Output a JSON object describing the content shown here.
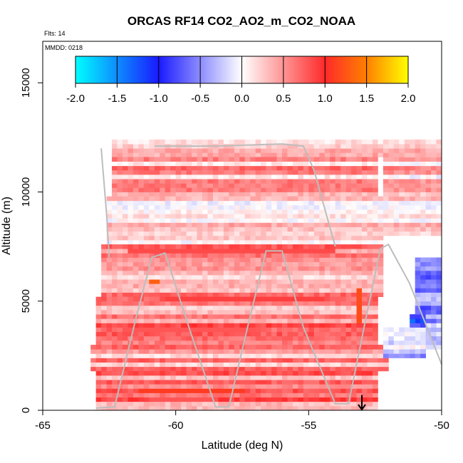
{
  "chart_data": {
    "type": "heatmap",
    "title": "ORCAS RF14 CO2_AO2_m_CO2_NOAA",
    "flights_note": "Flts: 14",
    "date_note": "MMDD: 0218",
    "xlabel": "Latitude (deg N)",
    "ylabel": "Altitude (m)",
    "xlim": [
      -65,
      -50
    ],
    "ylim": [
      0,
      16900
    ],
    "x_ticks": [
      -65,
      -60,
      -55,
      -50
    ],
    "x_tick_labels": [
      "-65",
      "-60",
      "-55",
      "-50"
    ],
    "y_ticks": [
      0,
      5000,
      10000,
      15000
    ],
    "y_tick_labels": [
      "0",
      "5000",
      "10000",
      "15000"
    ],
    "colorbar": {
      "min": -2.0,
      "max": 2.0,
      "ticks": [
        -2.0,
        -1.5,
        -1.0,
        -0.5,
        0.0,
        0.5,
        1.0,
        1.5,
        2.0
      ],
      "tick_labels": [
        "-2.0",
        "-1.5",
        "-1.0",
        "-0.5",
        "0.0",
        "0.5",
        "1.0",
        "1.5",
        "2.0"
      ],
      "color_stops": [
        {
          "value": -2.0,
          "color": "#00ffff"
        },
        {
          "value": -1.0,
          "color": "#1a1aff"
        },
        {
          "value": 0.0,
          "color": "#ffffff"
        },
        {
          "value": 1.0,
          "color": "#ff2a2a"
        },
        {
          "value": 1.5,
          "color": "#ff8000"
        },
        {
          "value": 2.0,
          "color": "#ffff00"
        }
      ]
    },
    "cell_size": {
      "dlat": 0.2,
      "dalt": 200
    },
    "field_regions": [
      {
        "lat": [
          -62.4,
          -52.2
        ],
        "alt": [
          11600,
          12300
        ],
        "value": 0.28
      },
      {
        "lat": [
          -62.5,
          -52.4
        ],
        "alt": [
          9800,
          11600
        ],
        "value": 0.42
      },
      {
        "lat": [
          -62.7,
          -52.3
        ],
        "alt": [
          7600,
          9800
        ],
        "value": 0.3
      },
      {
        "lat": [
          -62.8,
          -52.2
        ],
        "alt": [
          5200,
          7600
        ],
        "value": 0.5
      },
      {
        "lat": [
          -63.0,
          -52.4
        ],
        "alt": [
          3000,
          5200
        ],
        "value": 0.55
      },
      {
        "lat": [
          -63.2,
          -52.0
        ],
        "alt": [
          1700,
          3000
        ],
        "value": 0.45
      },
      {
        "lat": [
          -63.0,
          -52.4
        ],
        "alt": [
          0,
          1700
        ],
        "value": 0.6
      },
      {
        "lat": [
          -52.2,
          -50.0
        ],
        "alt": [
          8000,
          12400
        ],
        "value": 0.3
      },
      {
        "lat": [
          -51.0,
          -50.0
        ],
        "alt": [
          2800,
          7000
        ],
        "value": -0.45
      },
      {
        "lat": [
          -51.3,
          -50.6
        ],
        "alt": [
          3000,
          4400
        ],
        "value": -1.05
      },
      {
        "lat": [
          -52.3,
          -50.6
        ],
        "alt": [
          2400,
          3800
        ],
        "value": -0.25
      }
    ],
    "strong_bands": [
      {
        "lat": [
          -61.8,
          -54.0
        ],
        "alt": [
          7200,
          7400
        ],
        "value": 0.85
      },
      {
        "lat": [
          -60.5,
          -54.5
        ],
        "alt": [
          5000,
          5200
        ],
        "value": 0.9
      },
      {
        "lat": [
          -62.0,
          -57.0
        ],
        "alt": [
          3600,
          3800
        ],
        "value": 0.8
      },
      {
        "lat": [
          -61.5,
          -57.5
        ],
        "alt": [
          800,
          1000
        ],
        "value": 1.1
      },
      {
        "lat": [
          -61.0,
          -58.5
        ],
        "alt": [
          300,
          500
        ],
        "value": 0.8
      },
      {
        "lat": [
          -61.0,
          -60.6
        ],
        "alt": [
          5800,
          6000
        ],
        "value": 1.3
      },
      {
        "lat": [
          -53.2,
          -53.0
        ],
        "alt": [
          4000,
          5600
        ],
        "value": 1.2
      }
    ],
    "flight_track": [
      {
        "lat": -63.0,
        "alt": 100
      },
      {
        "lat": -62.3,
        "alt": 150
      },
      {
        "lat": -61.5,
        "alt": 4200
      },
      {
        "lat": -60.9,
        "alt": 7000
      },
      {
        "lat": -60.4,
        "alt": 7200
      },
      {
        "lat": -59.5,
        "alt": 3800
      },
      {
        "lat": -58.5,
        "alt": 150
      },
      {
        "lat": -58.0,
        "alt": 150
      },
      {
        "lat": -57.3,
        "alt": 3800
      },
      {
        "lat": -56.6,
        "alt": 7300
      },
      {
        "lat": -56.0,
        "alt": 7300
      },
      {
        "lat": -55.2,
        "alt": 3800
      },
      {
        "lat": -54.0,
        "alt": 300
      },
      {
        "lat": -53.5,
        "alt": 300
      },
      {
        "lat": -52.9,
        "alt": 3900
      },
      {
        "lat": -52.3,
        "alt": 7400
      },
      {
        "lat": -52.0,
        "alt": 7600
      },
      {
        "lat": -51.2,
        "alt": 5800
      },
      {
        "lat": -50.0,
        "alt": 2100
      }
    ],
    "flight_track_upper": [
      {
        "lat": -62.8,
        "alt": 12000
      },
      {
        "lat": -62.6,
        "alt": 9000
      },
      {
        "lat": -62.5,
        "alt": 7000
      }
    ],
    "flight_track_top": [
      {
        "lat": -60.8,
        "alt": 12100
      },
      {
        "lat": -58.5,
        "alt": 12100
      },
      {
        "lat": -56.0,
        "alt": 12200
      },
      {
        "lat": -55.2,
        "alt": 12100
      },
      {
        "lat": -54.8,
        "alt": 11000
      },
      {
        "lat": -54.0,
        "alt": 7500
      }
    ],
    "arrow_marker": {
      "lat": -53.0,
      "alt_top": 700,
      "alt_bottom": 0
    }
  }
}
